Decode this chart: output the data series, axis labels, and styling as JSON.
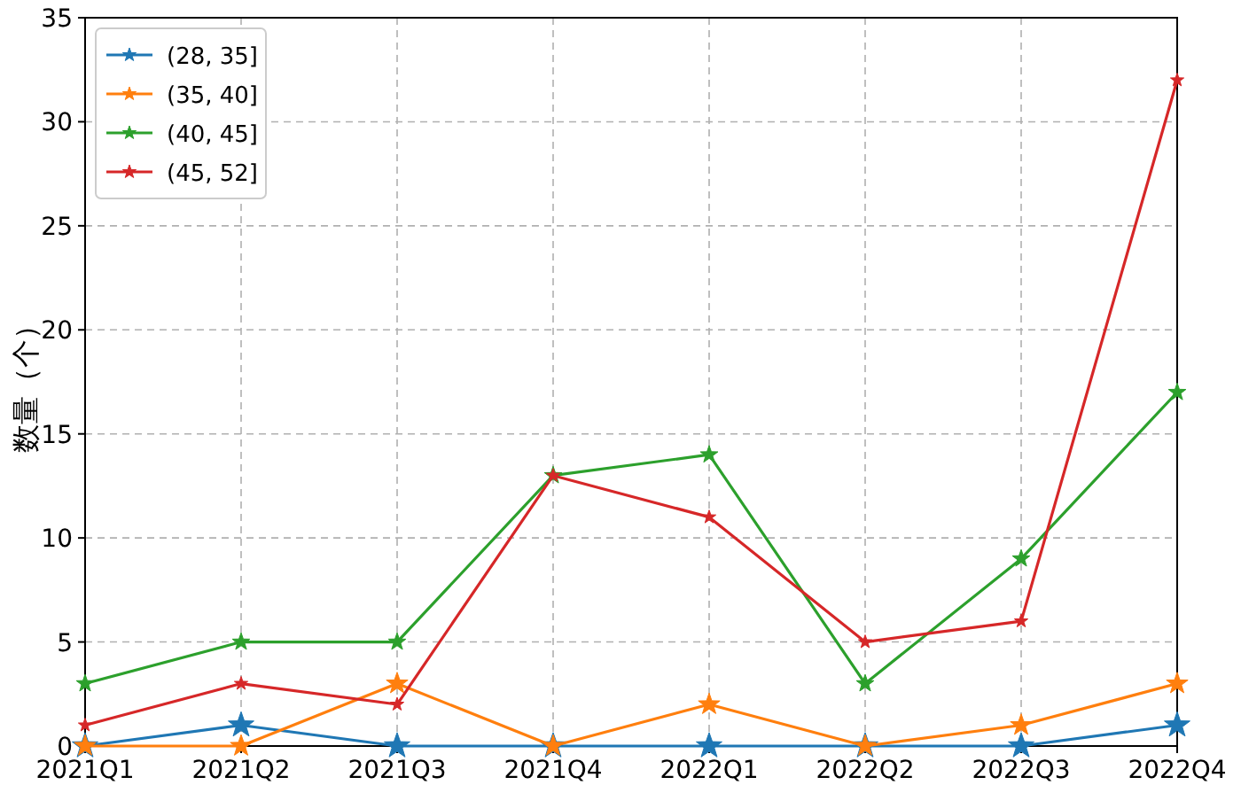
{
  "chart_data": {
    "type": "line",
    "ylabel": "数量（个）",
    "categories": [
      "2021Q1",
      "2021Q2",
      "2021Q3",
      "2021Q4",
      "2022Q1",
      "2022Q2",
      "2022Q3",
      "2022Q4"
    ],
    "series": [
      {
        "name": "(28, 35]",
        "color": "#1f77b4",
        "values": [
          0,
          1,
          0,
          0,
          0,
          0,
          0,
          1
        ]
      },
      {
        "name": "(35, 40]",
        "color": "#ff7f0e",
        "values": [
          0,
          0,
          3,
          0,
          2,
          0,
          1,
          3
        ]
      },
      {
        "name": "(40, 45]",
        "color": "#2ca02c",
        "values": [
          3,
          5,
          5,
          13,
          14,
          3,
          9,
          17
        ]
      },
      {
        "name": "(45, 52]",
        "color": "#d62728",
        "values": [
          1,
          3,
          2,
          13,
          11,
          5,
          6,
          32
        ]
      }
    ],
    "ylim": [
      0,
      35
    ],
    "yticks": [
      0,
      5,
      10,
      15,
      20,
      25,
      30,
      35
    ],
    "grid": true,
    "legend": "top left",
    "marker": "star",
    "line_style": "solid"
  }
}
